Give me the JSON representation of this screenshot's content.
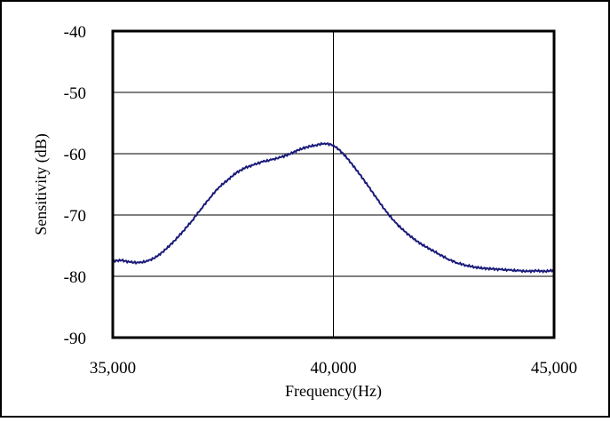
{
  "chart_data": {
    "type": "line",
    "title": "",
    "xlabel": "Frequency(Hz)",
    "ylabel": "Sensitivity  (dB)",
    "xlim": [
      35000,
      45000
    ],
    "ylim": [
      -90,
      -40
    ],
    "x_ticks": [
      35000,
      40000,
      45000
    ],
    "x_tick_labels": [
      "35,000",
      "40,000",
      "45,000"
    ],
    "y_ticks": [
      -40,
      -50,
      -60,
      -70,
      -80,
      -90
    ],
    "y_tick_labels": [
      "-40",
      "-50",
      "-60",
      "-70",
      "-80",
      "-90"
    ],
    "grid": true,
    "legend": "none",
    "colors": {
      "line": "#1a1a7a",
      "axes": "#000000",
      "grid": "#000000",
      "background": "#ffffff"
    },
    "series": [
      {
        "x": [
          35000,
          35200,
          35400,
          35600,
          35800,
          36000,
          36200,
          36400,
          36600,
          36800,
          37000,
          37200,
          37400,
          37600,
          37800,
          38000,
          38200,
          38400,
          38600,
          38800,
          39000,
          39200,
          39400,
          39600,
          39800,
          40000,
          40200,
          40400,
          40600,
          40800,
          41000,
          41200,
          41400,
          41600,
          41800,
          42000,
          42200,
          42400,
          42600,
          42800,
          43000,
          43200,
          43400,
          43600,
          43800,
          44000,
          44200,
          44400,
          44600,
          44800,
          45000
        ],
        "values": [
          -77.5,
          -77.4,
          -77.7,
          -77.8,
          -77.5,
          -76.8,
          -75.6,
          -74.2,
          -72.6,
          -70.9,
          -69.0,
          -67.2,
          -65.5,
          -64.3,
          -63.1,
          -62.3,
          -61.8,
          -61.3,
          -61.0,
          -60.6,
          -60.1,
          -59.4,
          -58.9,
          -58.6,
          -58.3,
          -58.6,
          -59.8,
          -61.5,
          -63.4,
          -65.4,
          -67.5,
          -69.5,
          -71.2,
          -72.6,
          -73.8,
          -74.8,
          -75.6,
          -76.4,
          -77.2,
          -77.8,
          -78.2,
          -78.5,
          -78.7,
          -78.8,
          -78.9,
          -79.0,
          -79.1,
          -79.2,
          -79.1,
          -79.2,
          -79.0
        ]
      }
    ]
  }
}
